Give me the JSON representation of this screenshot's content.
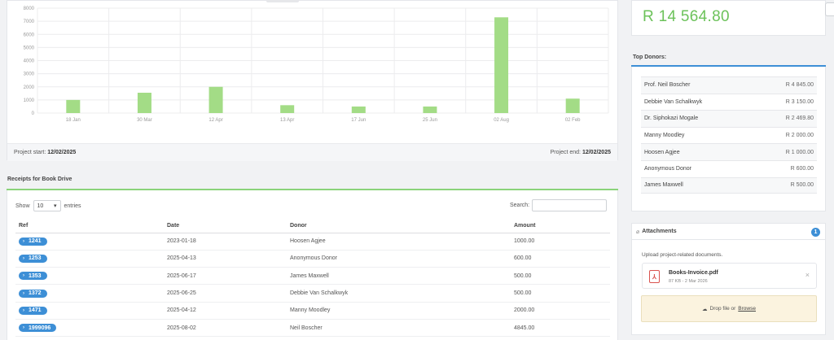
{
  "chart_data": {
    "type": "bar",
    "categories": [
      "18 Jan",
      "30 Mar",
      "12 Apr",
      "13 Apr",
      "17 Jun",
      "25 Jun",
      "02 Aug",
      "02 Feb"
    ],
    "values": [
      1000,
      1550,
      2000,
      600,
      500,
      500,
      7300,
      1100
    ],
    "yticks": [
      0,
      1000,
      2000,
      3000,
      4000,
      5000,
      6000,
      7000,
      8000
    ],
    "ylim": [
      0,
      8000
    ],
    "grid": true,
    "bar_color": "#a3dc86",
    "title": "",
    "xlabel": "",
    "ylabel": ""
  },
  "project": {
    "start_label": "Project start:",
    "start_date": "12/02/2025",
    "end_label": "Project end:",
    "end_date": "12/02/2025"
  },
  "receipts": {
    "title": "Receipts for Book Drive",
    "show_label": "Show",
    "entries_value": "10",
    "entries_label": "entries",
    "search_label": "Search:",
    "search_value": "",
    "columns": [
      "Ref",
      "Date",
      "Donor",
      "Amount"
    ],
    "rows": [
      {
        "ref": "1241",
        "date": "2023-01-18",
        "donor": "Hoosen Agjee",
        "amount": "1000.00"
      },
      {
        "ref": "1253",
        "date": "2025-04-13",
        "donor": "Anonymous Donor",
        "amount": "600.00"
      },
      {
        "ref": "1353",
        "date": "2025-06-17",
        "donor": "James Maxwell",
        "amount": "500.00"
      },
      {
        "ref": "1372",
        "date": "2025-06-25",
        "donor": "Debbie Van Schalkwyk",
        "amount": "500.00"
      },
      {
        "ref": "1471",
        "date": "2025-04-12",
        "donor": "Manny Moodley",
        "amount": "2000.00"
      },
      {
        "ref": "1999096",
        "date": "2025-08-02",
        "donor": "Neil Boscher",
        "amount": "4845.00"
      }
    ]
  },
  "total": {
    "amount": "R 14 564.80",
    "color": "#6cc25a"
  },
  "top_donors": {
    "title": "Top Donors:",
    "items": [
      {
        "name": "Prof. Neil Boscher",
        "amount": "R 4 845.00"
      },
      {
        "name": "Debbie Van Schalkwyk",
        "amount": "R 3 150.00"
      },
      {
        "name": "Dr. Siphokazi Mogale",
        "amount": "R 2 469.80"
      },
      {
        "name": "Manny Moodley",
        "amount": "R 2 000.00"
      },
      {
        "name": "Hoosen Agjee",
        "amount": "R 1 000.00"
      },
      {
        "name": "Anonymous Donor",
        "amount": "R 600.00"
      },
      {
        "name": "James Maxwell",
        "amount": "R 500.00"
      }
    ]
  },
  "attachments": {
    "title": "Attachments",
    "count": "1",
    "description": "Upload project-related documents.",
    "file": {
      "name": "Books-Invoice.pdf",
      "meta": "87 KB - 2 Mar 2026",
      "icon": "pdf-icon"
    },
    "drop_text": "Drop file or",
    "browse_label": "Browse"
  },
  "colors": {
    "accent_blue": "#3d8fd6",
    "accent_green": "#8bd37a"
  }
}
